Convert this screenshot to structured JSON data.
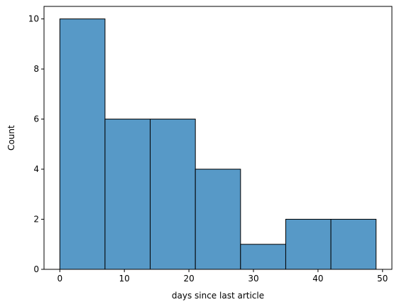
{
  "chart_data": {
    "type": "bar",
    "title": "",
    "xlabel": "days since last article",
    "ylabel": "Count",
    "bins": [
      {
        "start": 0,
        "end": 7,
        "count": 10
      },
      {
        "start": 7,
        "end": 14,
        "count": 6
      },
      {
        "start": 14,
        "end": 21,
        "count": 6
      },
      {
        "start": 21,
        "end": 28,
        "count": 4
      },
      {
        "start": 28,
        "end": 35,
        "count": 1
      },
      {
        "start": 35,
        "end": 42,
        "count": 2
      },
      {
        "start": 42,
        "end": 49,
        "count": 2
      }
    ],
    "xlim": [
      -2.45,
      51.45
    ],
    "ylim": [
      0,
      10.5
    ],
    "xticks": [
      "0",
      "10",
      "20",
      "30",
      "40",
      "50"
    ],
    "yticks": [
      "0",
      "2",
      "4",
      "6",
      "8",
      "10"
    ],
    "grid": false,
    "colors": {
      "bar_fill": "#5799c7",
      "bar_edge": "#000000"
    }
  }
}
